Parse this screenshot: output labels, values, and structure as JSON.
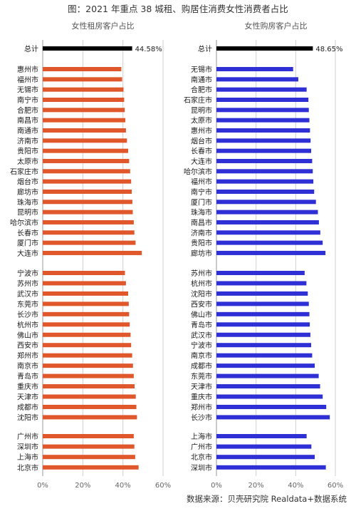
{
  "title": "图：2021 年重点 38 城租、购居住消费女性消费者占比",
  "source": "数据来源：贝壳研究院 Realdata+数据系统",
  "colors": {
    "total": "#000000",
    "rent": "#e0572b",
    "buy": "#2f2fd6",
    "grid": "#cfcfcf",
    "axis": "#9a9a9a"
  },
  "chart_data": [
    {
      "type": "bar",
      "orientation": "horizontal",
      "title": "女性租房客户占比",
      "xlim": [
        0,
        60
      ],
      "xticks": [
        "0%",
        "20%",
        "40%",
        "60%"
      ],
      "total": {
        "label": "总计",
        "value": 44.58,
        "value_label": "44.58%"
      },
      "groups": [
        {
          "categories": [
            "惠州市",
            "福州市",
            "无锡市",
            "南宁市",
            "合肥市",
            "南昌市",
            "南通市",
            "济南市",
            "贵阳市",
            "太原市",
            "石家庄市",
            "烟台市",
            "廊坊市",
            "珠海市",
            "昆明市",
            "哈尔滨市",
            "长春市",
            "厦门市",
            "大连市"
          ],
          "values": [
            39.2,
            39.6,
            40.3,
            40.6,
            40.9,
            41.2,
            41.5,
            42.0,
            42.6,
            43.1,
            43.6,
            44.1,
            44.4,
            44.7,
            44.9,
            45.4,
            45.7,
            46.3,
            49.4
          ]
        },
        {
          "categories": [
            "宁波市",
            "苏州市",
            "武汉市",
            "东莞市",
            "长沙市",
            "杭州市",
            "佛山市",
            "西安市",
            "郑州市",
            "南京市",
            "青岛市",
            "重庆市",
            "天津市",
            "成都市",
            "沈阳市"
          ],
          "values": [
            41.0,
            41.5,
            42.6,
            42.9,
            43.1,
            43.4,
            43.8,
            44.1,
            44.6,
            45.0,
            45.4,
            45.8,
            46.4,
            46.7,
            47.0
          ]
        },
        {
          "categories": [
            "广州市",
            "深圳市",
            "上海市",
            "北京市"
          ],
          "values": [
            45.4,
            45.7,
            46.1,
            47.8
          ]
        }
      ]
    },
    {
      "type": "bar",
      "orientation": "horizontal",
      "title": "女性购房客户占比",
      "xlim": [
        0,
        60
      ],
      "xticks": [
        "0%",
        "20%",
        "40%",
        "60%"
      ],
      "total": {
        "label": "总计",
        "value": 48.65,
        "value_label": "48.65%"
      },
      "groups": [
        {
          "categories": [
            "无锡市",
            "南通市",
            "合肥市",
            "石家庄市",
            "昆明市",
            "太原市",
            "惠州市",
            "烟台市",
            "长春市",
            "大连市",
            "哈尔滨市",
            "福州市",
            "南宁市",
            "厦门市",
            "珠海市",
            "南昌市",
            "济南市",
            "贵阳市",
            "廊坊市"
          ],
          "values": [
            38.7,
            41.3,
            45.5,
            46.4,
            46.6,
            46.9,
            47.2,
            47.5,
            47.8,
            48.3,
            48.6,
            48.9,
            49.3,
            50.2,
            51.2,
            51.7,
            52.4,
            53.6,
            55.0
          ]
        },
        {
          "categories": [
            "苏州市",
            "杭州市",
            "沈阳市",
            "西安市",
            "佛山市",
            "青岛市",
            "武汉市",
            "宁波市",
            "南京市",
            "成都市",
            "东莞市",
            "天津市",
            "重庆市",
            "郑州市",
            "长沙市"
          ],
          "values": [
            44.5,
            45.4,
            46.1,
            46.6,
            46.9,
            47.1,
            47.4,
            47.8,
            48.3,
            49.6,
            51.6,
            52.3,
            53.6,
            55.4,
            57.2
          ]
        },
        {
          "categories": [
            "上海市",
            "广州市",
            "北京市",
            "深圳市"
          ],
          "values": [
            45.5,
            47.9,
            49.6,
            55.2
          ]
        }
      ]
    }
  ]
}
